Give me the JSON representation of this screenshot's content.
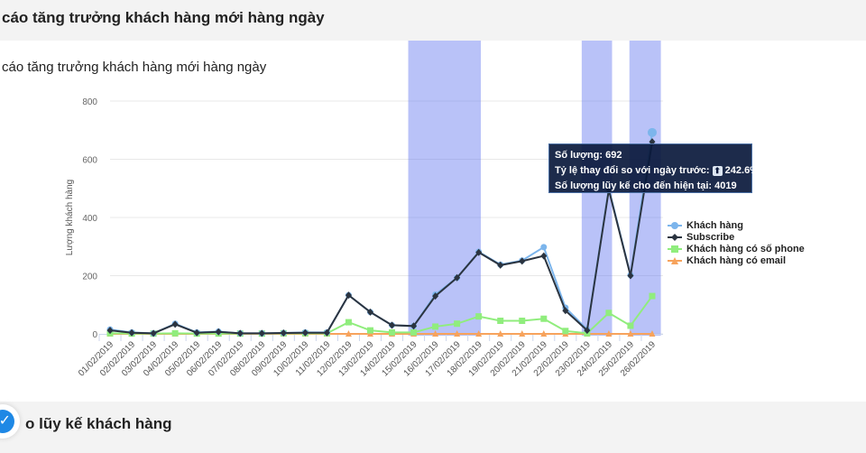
{
  "header": {
    "title": "cáo tăng trưởng khách hàng mới hàng ngày"
  },
  "footer": {
    "title": "o lũy kế khách hàng"
  },
  "tooltip": {
    "line1_label": "Số lượng: ",
    "line1_value": "692",
    "line2_label": "Tỷ lệ thay đổi so với ngày trước: ",
    "line2_icon": "up-arrow-icon",
    "line2_value": "242.6%",
    "line3_label": "Số lượng lũy kế cho đến hiện tại: ",
    "line3_value": "4019"
  },
  "chart_data": {
    "type": "line",
    "title": "cáo tăng trưởng khách hàng mới hàng ngày",
    "xlabel": "",
    "ylabel": "Lượng khách hàng",
    "ylim": [
      0,
      800
    ],
    "yticks": [
      "0",
      "200",
      "400",
      "600",
      "800"
    ],
    "yticks_values": [
      0,
      200,
      400,
      600,
      800
    ],
    "grid": true,
    "legend_position": "right",
    "categories": [
      "01/02/2019",
      "02/02/2019",
      "03/02/2019",
      "04/02/2019",
      "05/02/2019",
      "06/02/2019",
      "07/02/2019",
      "08/02/2019",
      "09/02/2019",
      "10/02/2019",
      "11/02/2019",
      "12/02/2019",
      "13/02/2019",
      "14/02/2019",
      "15/02/2019",
      "16/02/2019",
      "17/02/2019",
      "18/02/2019",
      "19/02/2019",
      "20/02/2019",
      "21/02/2019",
      "22/02/2019",
      "23/02/2019",
      "24/02/2019",
      "25/02/2019",
      "26/02/2019"
    ],
    "plot_bands": [
      [
        13.75,
        17.1
      ],
      [
        21.75,
        23.15
      ],
      [
        23.95,
        25.4
      ]
    ],
    "series": [
      {
        "name": "Khách hàng",
        "color": "#7cb5ec",
        "marker": "circle",
        "values": [
          15,
          5,
          2,
          35,
          5,
          8,
          2,
          2,
          3,
          5,
          5,
          133,
          75,
          30,
          27,
          135,
          193,
          282,
          238,
          252,
          298,
          90,
          15,
          500,
          202,
          692
        ]
      },
      {
        "name": "Subscribe",
        "color": "#2b3440",
        "marker": "diamond",
        "values": [
          12,
          4,
          2,
          33,
          4,
          7,
          2,
          2,
          3,
          4,
          4,
          133,
          75,
          30,
          27,
          130,
          193,
          280,
          236,
          250,
          268,
          80,
          12,
          495,
          200,
          660
        ]
      },
      {
        "name": "Khách hàng có số phone",
        "color": "#90ed7d",
        "marker": "square",
        "values": [
          2,
          1,
          1,
          2,
          1,
          1,
          1,
          1,
          2,
          2,
          2,
          40,
          12,
          5,
          5,
          25,
          35,
          60,
          45,
          45,
          52,
          10,
          2,
          72,
          28,
          130
        ]
      },
      {
        "name": "Khách hàng có email",
        "color": "#f7a35c",
        "marker": "triangle",
        "values": [
          0,
          0,
          0,
          0,
          0,
          0,
          0,
          0,
          0,
          0,
          0,
          0,
          0,
          0,
          0,
          0,
          0,
          0,
          0,
          0,
          0,
          0,
          0,
          0,
          0,
          0
        ]
      }
    ],
    "tooltip_index": 25
  }
}
